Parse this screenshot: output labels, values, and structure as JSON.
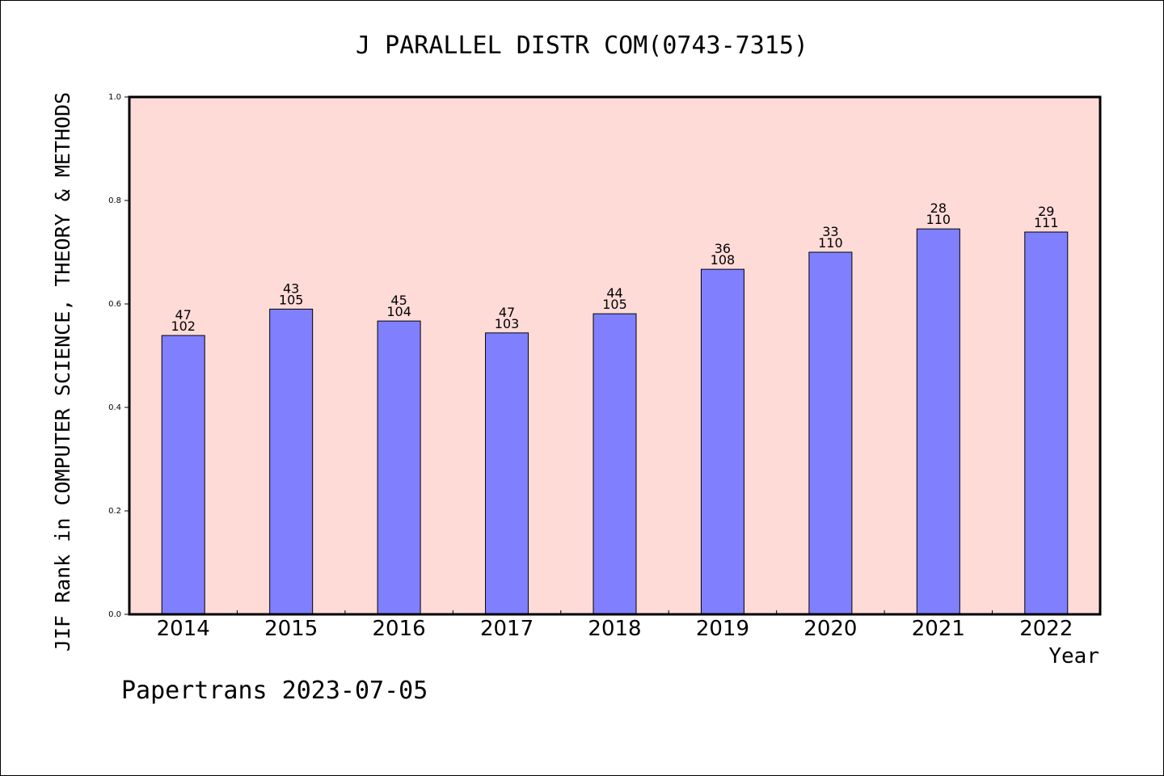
{
  "chart_data": {
    "type": "bar",
    "title": "J PARALLEL DISTR COM(0743-7315)",
    "xlabel": "Year",
    "ylabel": "JIF Rank in COMPUTER SCIENCE, THEORY & METHODS",
    "footer": "Papertrans 2023-07-05",
    "categories": [
      "2014",
      "2015",
      "2016",
      "2017",
      "2018",
      "2019",
      "2020",
      "2021",
      "2022"
    ],
    "values": [
      0.539,
      0.59,
      0.567,
      0.544,
      0.581,
      0.667,
      0.7,
      0.745,
      0.739
    ],
    "rank": [
      "47",
      "43",
      "45",
      "47",
      "44",
      "36",
      "33",
      "28",
      "29"
    ],
    "total": [
      "102",
      "105",
      "104",
      "103",
      "105",
      "108",
      "110",
      "110",
      "111"
    ],
    "ylim": [
      0,
      1.0
    ],
    "yticks": [
      "0.0",
      "0.2",
      "0.4",
      "0.6",
      "0.8",
      "1.0"
    ],
    "colors": {
      "plot_bg": "#ffdbd8",
      "bar": "#8080ff",
      "outline": "#000000"
    },
    "grid": false
  }
}
